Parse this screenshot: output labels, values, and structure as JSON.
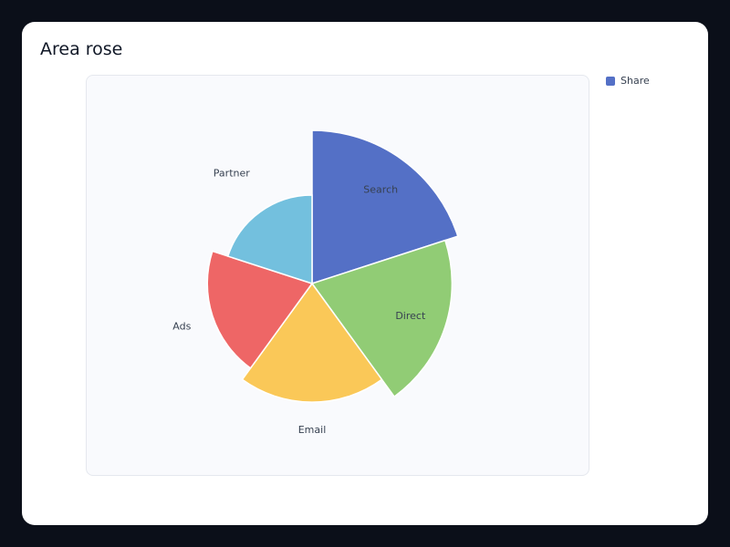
{
  "chart_data": {
    "type": "pie",
    "subtype": "area-rose",
    "title": "Area rose",
    "legend": {
      "position": "top-right",
      "entries": [
        {
          "name": "Share",
          "color": "#5470c6"
        }
      ]
    },
    "series": [
      {
        "name": "Share",
        "slices": [
          {
            "label": "Search",
            "value": 30,
            "color": "#5470c6"
          },
          {
            "label": "Direct",
            "value": 25,
            "color": "#91cc75"
          },
          {
            "label": "Email",
            "value": 18,
            "color": "#fac858"
          },
          {
            "label": "Ads",
            "value": 14,
            "color": "#ee6666"
          },
          {
            "label": "Partner",
            "value": 10,
            "color": "#73c0de"
          }
        ]
      }
    ]
  }
}
